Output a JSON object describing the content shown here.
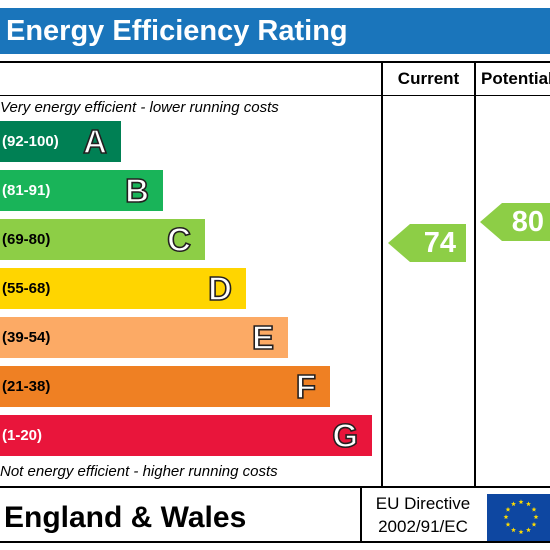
{
  "title": "Energy Efficiency Rating",
  "columns": {
    "current": "Current",
    "potential": "Potential"
  },
  "captions": {
    "top": "Very energy efficient - lower running costs",
    "bottom": "Not energy efficient - higher running costs"
  },
  "bands": [
    {
      "range": "(92-100)",
      "letter": "A",
      "color": "#008054",
      "range_color": "#ffffff"
    },
    {
      "range": "(81-91)",
      "letter": "B",
      "color": "#19b459",
      "range_color": "#ffffff"
    },
    {
      "range": "(69-80)",
      "letter": "C",
      "color": "#8dce46",
      "range_color": "#000000"
    },
    {
      "range": "(55-68)",
      "letter": "D",
      "color": "#ffd500",
      "range_color": "#000000"
    },
    {
      "range": "(39-54)",
      "letter": "E",
      "color": "#fcaa65",
      "range_color": "#000000"
    },
    {
      "range": "(21-38)",
      "letter": "F",
      "color": "#ef8023",
      "range_color": "#000000"
    },
    {
      "range": "(1-20)",
      "letter": "G",
      "color": "#e9153b",
      "range_color": "#ffffff"
    }
  ],
  "ratings": {
    "current": {
      "value": "74",
      "band": "C",
      "color": "#8dce46"
    },
    "potential": {
      "value": "80",
      "band": "C",
      "color": "#8dce46"
    }
  },
  "footer": {
    "country": "England & Wales",
    "directive_line1": "EU Directive",
    "directive_line2": "2002/91/EC",
    "flag_icon": "eu-flag-icon"
  },
  "colors": {
    "header_bg": "#1a75bb",
    "header_text": "#ffffff",
    "flag_bg": "#0e47a1",
    "flag_stars": "#ffdd00"
  }
}
